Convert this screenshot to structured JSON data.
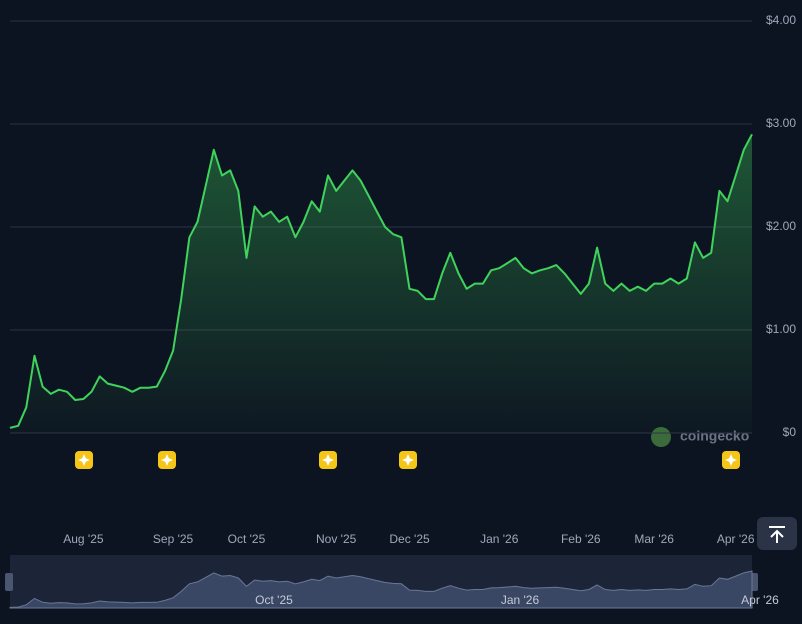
{
  "chart_data": {
    "type": "line",
    "categories": [
      null,
      null,
      null,
      null,
      null,
      null,
      null,
      null,
      null,
      "Aug '25",
      null,
      null,
      null,
      null,
      null,
      null,
      null,
      null,
      null,
      null,
      "Sep '25",
      null,
      null,
      null,
      null,
      null,
      null,
      null,
      null,
      "Oct '25",
      null,
      null,
      null,
      null,
      null,
      null,
      null,
      null,
      null,
      null,
      "Nov '25",
      null,
      null,
      null,
      null,
      null,
      null,
      null,
      null,
      "Dec '25",
      null,
      null,
      null,
      null,
      null,
      null,
      null,
      null,
      null,
      null,
      "Jan '26",
      null,
      null,
      null,
      null,
      null,
      null,
      null,
      null,
      null,
      "Feb '26",
      null,
      null,
      null,
      null,
      null,
      null,
      null,
      null,
      "Mar '26",
      null,
      null,
      null,
      null,
      null,
      null,
      null,
      null,
      null,
      "Apr '26",
      null,
      null
    ],
    "series": [
      {
        "color": "#3fd35c",
        "values": [
          0.05,
          0.07,
          0.25,
          0.75,
          0.45,
          0.38,
          0.42,
          0.4,
          0.32,
          0.33,
          0.4,
          0.55,
          0.48,
          0.46,
          0.44,
          0.4,
          0.44,
          0.44,
          0.45,
          0.6,
          0.8,
          1.3,
          1.9,
          2.05,
          2.4,
          2.75,
          2.5,
          2.55,
          2.35,
          1.7,
          2.2,
          2.1,
          2.15,
          2.05,
          2.1,
          1.9,
          2.05,
          2.25,
          2.15,
          2.5,
          2.35,
          2.45,
          2.55,
          2.45,
          2.3,
          2.15,
          2.0,
          1.93,
          1.9,
          1.4,
          1.38,
          1.3,
          1.3,
          1.55,
          1.75,
          1.55,
          1.4,
          1.45,
          1.45,
          1.58,
          1.6,
          1.65,
          1.7,
          1.6,
          1.55,
          1.58,
          1.6,
          1.63,
          1.55,
          1.45,
          1.35,
          1.45,
          1.8,
          1.45,
          1.38,
          1.45,
          1.38,
          1.42,
          1.38,
          1.45,
          1.45,
          1.5,
          1.45,
          1.5,
          1.85,
          1.7,
          1.75,
          2.35,
          2.25,
          2.5,
          2.75,
          2.9
        ]
      }
    ],
    "ylim": [
      0,
      4
    ],
    "yticks": [
      {
        "value": 0,
        "label": "$0"
      },
      {
        "value": 1,
        "label": "$1.00"
      },
      {
        "value": 2,
        "label": "$2.00"
      },
      {
        "value": 3,
        "label": "$3.00"
      },
      {
        "value": 4,
        "label": "$4.00"
      }
    ],
    "grid": true,
    "watermark": "coingecko",
    "navigator_labels": [
      "Oct '25",
      "Jan '26",
      "Apr '26"
    ]
  }
}
